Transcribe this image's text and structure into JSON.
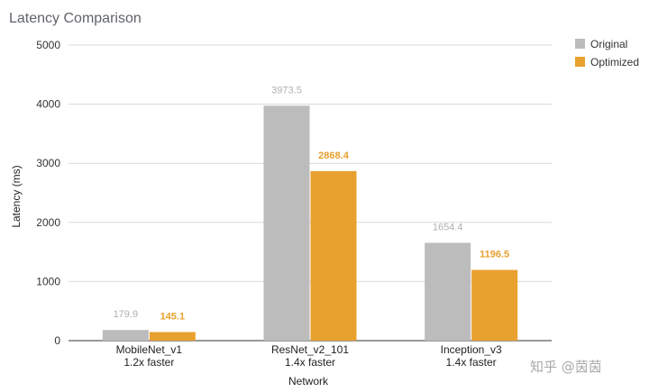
{
  "chart_data": {
    "type": "bar",
    "title": "Latency Comparison",
    "xlabel": "Network",
    "ylabel": "Latency (ms)",
    "ylim": [
      0,
      5000
    ],
    "yticks": [
      "0",
      "1000",
      "2000",
      "3000",
      "4000",
      "5000"
    ],
    "grid": true,
    "legend_position": "top-right",
    "categories": [
      {
        "name": "MobileNet_v1",
        "note": "1.2x faster"
      },
      {
        "name": "ResNet_v2_101",
        "note": "1.4x faster"
      },
      {
        "name": "Inception_v3",
        "note": "1.4x faster"
      }
    ],
    "series": [
      {
        "name": "Original",
        "color": "#bcbcbc",
        "label_color": "#b0b0b0",
        "values": [
          179.9,
          3973.5,
          1654.4
        ],
        "labels": [
          "179.9",
          "3973.5",
          "1654.4"
        ]
      },
      {
        "name": "Optimized",
        "color": "#e8a02f",
        "label_color": "#e8a02f",
        "values": [
          145.1,
          2868.4,
          1196.5
        ],
        "labels": [
          "145.1",
          "2868.4",
          "1196.5"
        ]
      }
    ]
  },
  "watermark": {
    "text": "知乎 @茵茵"
  }
}
